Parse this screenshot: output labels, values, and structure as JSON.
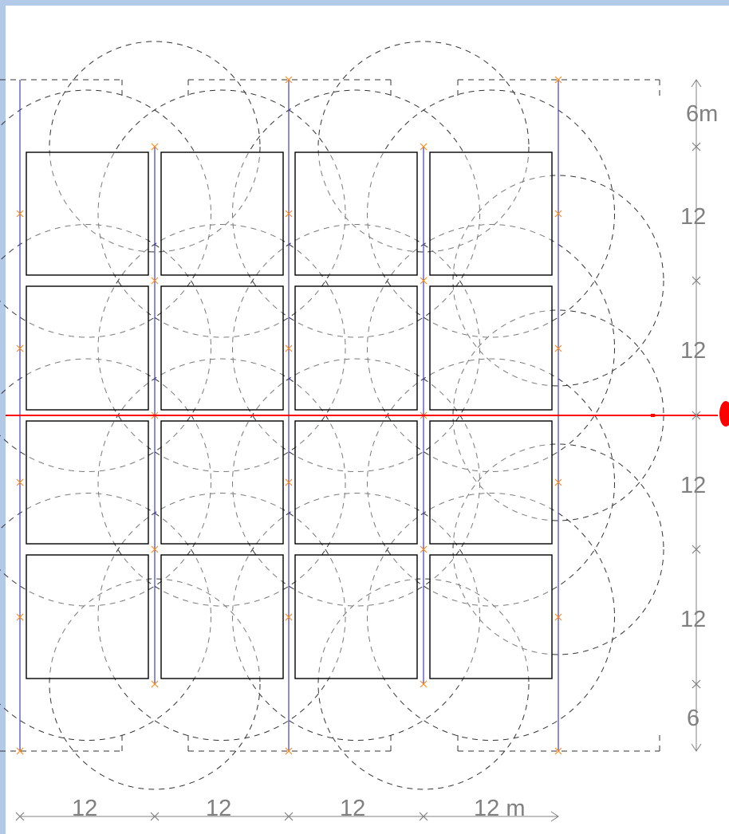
{
  "layout_plan": {
    "columns": 4,
    "rows": 4,
    "colors": {
      "frame": "#b3c9e8",
      "module_outline": "#000000",
      "coverage_dash": "#333333",
      "rail": "#3f3fc8",
      "cross_marker": "#ff8c1a",
      "section_line": "#ff0000",
      "dimension": "#808080"
    },
    "icons": {
      "cross_marker": "x-mark-icon",
      "section_handle": "red-handle-icon",
      "dimension_arrow": "arrow-icon"
    }
  },
  "dimensions": {
    "vertical": [
      "6m",
      "12",
      "12",
      "12",
      "12",
      "6"
    ],
    "horizontal": [
      "12",
      "12",
      "12",
      "12 m"
    ]
  }
}
